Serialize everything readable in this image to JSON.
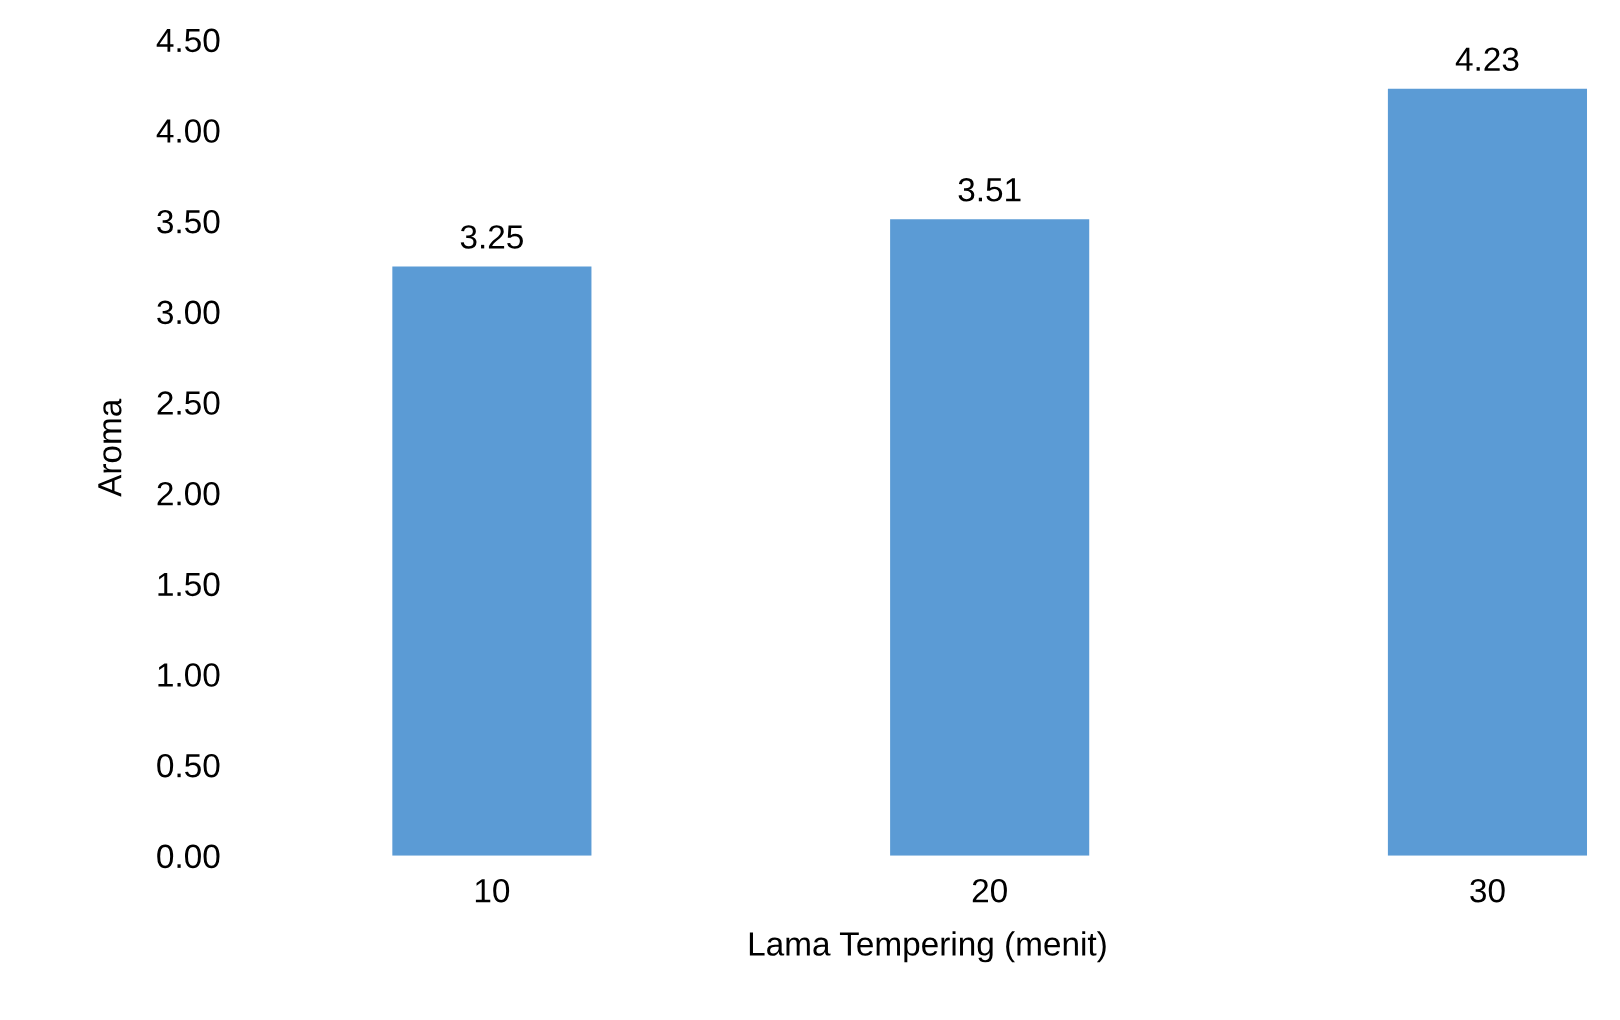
{
  "chart_data": {
    "type": "bar",
    "xlabel": "Lama Tempering (menit)",
    "ylabel": "Aroma",
    "categories": [
      "10",
      "20",
      "30"
    ],
    "values": [
      3.25,
      3.51,
      4.23
    ],
    "color": "#5b9bd5",
    "ylim": [
      0,
      4.5
    ],
    "yticks": [
      {
        "value": 0,
        "label": "0.00"
      },
      {
        "value": 0.5,
        "label": "0.50"
      },
      {
        "value": 1,
        "label": "1.00"
      },
      {
        "value": 1.5,
        "label": "1.50"
      },
      {
        "value": 2,
        "label": "2.00"
      },
      {
        "value": 2.5,
        "label": "2.50"
      },
      {
        "value": 3,
        "label": "3.00"
      },
      {
        "value": 3.5,
        "label": "3.50"
      },
      {
        "value": 4,
        "label": "4.00"
      },
      {
        "value": 4.5,
        "label": "4.50"
      }
    ],
    "data_labels": true,
    "grid": false,
    "legend": false
  }
}
